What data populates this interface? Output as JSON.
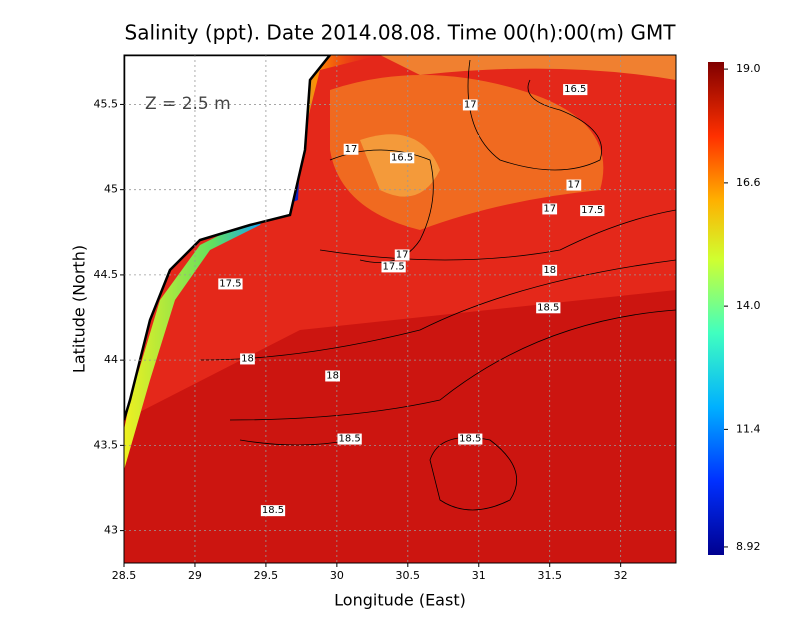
{
  "chart_data": {
    "type": "field",
    "title": "Salinity (ppt). Date 2014.08.08. Time 00(h):00(m) GMT",
    "annotation": "Z = 2.5 m",
    "x_label": "Longitude (East)",
    "y_label": "Latitude (North)",
    "xlim": [
      28.5,
      32.39
    ],
    "ylim": [
      42.81,
      45.79
    ],
    "xticks": [
      28.5,
      29,
      29.5,
      30,
      30.5,
      31,
      31.5,
      32
    ],
    "yticks": [
      43,
      43.5,
      44,
      44.5,
      45,
      45.5
    ],
    "grid": true,
    "clim": [
      8.75,
      19.15
    ],
    "cticks": [
      {
        "value": 19,
        "label": "19.0"
      },
      {
        "value": 16.6,
        "label": "16.6"
      },
      {
        "value": 14,
        "label": "14.0"
      },
      {
        "value": 11.4,
        "label": "11.4"
      },
      {
        "value": 8.92,
        "label": "8.92"
      }
    ],
    "contour_labels": [
      {
        "lon": 30.94,
        "lat": 45.5,
        "value": 17
      },
      {
        "lon": 31.68,
        "lat": 45.59,
        "value": 16.5
      },
      {
        "lon": 30.1,
        "lat": 45.24,
        "value": 17
      },
      {
        "lon": 30.46,
        "lat": 45.19,
        "value": 16.5
      },
      {
        "lon": 31.67,
        "lat": 45.03,
        "value": 17
      },
      {
        "lon": 31.5,
        "lat": 44.89,
        "value": 17
      },
      {
        "lon": 31.8,
        "lat": 44.88,
        "value": 17.5
      },
      {
        "lon": 30.46,
        "lat": 44.62,
        "value": 17
      },
      {
        "lon": 30.4,
        "lat": 44.55,
        "value": 17.5
      },
      {
        "lon": 31.5,
        "lat": 44.53,
        "value": 18
      },
      {
        "lon": 31.49,
        "lat": 44.31,
        "value": 18.5
      },
      {
        "lon": 29.25,
        "lat": 44.45,
        "value": 17.5
      },
      {
        "lon": 29.37,
        "lat": 44.01,
        "value": 18
      },
      {
        "lon": 29.97,
        "lat": 43.91,
        "value": 18
      },
      {
        "lon": 30.09,
        "lat": 43.54,
        "value": 18.5
      },
      {
        "lon": 30.94,
        "lat": 43.54,
        "value": 18.5
      },
      {
        "lon": 29.55,
        "lat": 43.12,
        "value": 18.5
      }
    ]
  }
}
